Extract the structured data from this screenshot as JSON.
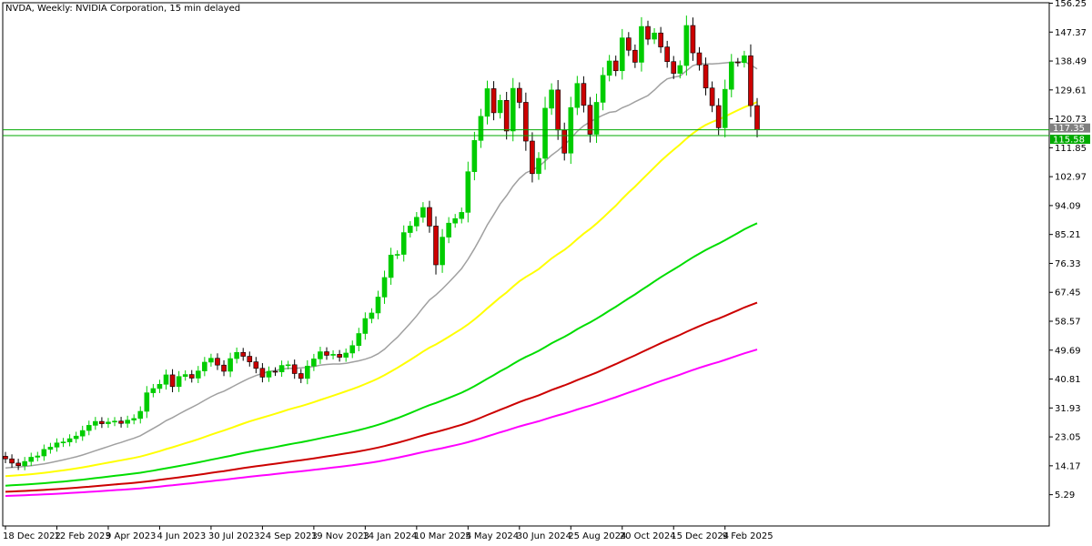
{
  "chart_data": {
    "type": "candlestick",
    "title": "NVDA, Weekly:  NVIDIA Corporation, 15 min delayed",
    "y_ticks": [
      "156.25",
      "147.37",
      "138.49",
      "129.61",
      "120.73",
      "111.85",
      "102.97",
      "94.09",
      "85.21",
      "76.33",
      "67.45",
      "58.57",
      "49.69",
      "40.81",
      "31.93",
      "23.05",
      "14.17",
      "5.29"
    ],
    "ylim": [
      0.0,
      156.25
    ],
    "x_ticks": [
      {
        "label": "18 Dec 2022",
        "index": 0
      },
      {
        "label": "12 Feb 2023",
        "index": 8
      },
      {
        "label": "9 Apr 2023",
        "index": 16
      },
      {
        "label": "4 Jun 2023",
        "index": 24
      },
      {
        "label": "30 Jul 2023",
        "index": 32
      },
      {
        "label": "24 Sep 2023",
        "index": 40
      },
      {
        "label": "19 Nov 2023",
        "index": 48
      },
      {
        "label": "14 Jan 2024",
        "index": 56
      },
      {
        "label": "10 Mar 2024",
        "index": 64
      },
      {
        "label": "5 May 2024",
        "index": 72
      },
      {
        "label": "30 Jun 2024",
        "index": 80
      },
      {
        "label": "25 Aug 2024",
        "index": 88
      },
      {
        "label": "20 Oct 2024",
        "index": 96
      },
      {
        "label": "15 Dec 2024",
        "index": 104
      },
      {
        "label": "9 Feb 2025",
        "index": 112
      }
    ],
    "price_labels": [
      {
        "text": "117.35",
        "value": 117.35
      },
      {
        "text": "115.58",
        "value": 115.58
      }
    ],
    "closes": [
      16.3,
      15.0,
      14.2,
      15.5,
      16.8,
      17.2,
      19.2,
      19.9,
      21.2,
      21.5,
      22.5,
      23.3,
      25.0,
      26.6,
      27.8,
      27.1,
      27.6,
      27.9,
      27.2,
      28.2,
      28.7,
      30.9,
      36.6,
      37.9,
      39.2,
      42.1,
      38.5,
      41.6,
      42.2,
      41.1,
      43.3,
      46.0,
      47.2,
      45.1,
      43.2,
      47.1,
      49.0,
      47.8,
      46.1,
      44.1,
      41.4,
      43.2,
      43.0,
      45.0,
      45.2,
      42.5,
      41.0,
      44.8,
      47.0,
      49.2,
      48.1,
      48.4,
      47.5,
      48.8,
      51.1,
      54.8,
      59.4,
      61.1,
      66.0,
      72.0,
      78.9,
      79.1,
      85.8,
      87.8,
      90.5,
      93.5,
      87.8,
      75.9,
      84.4,
      88.7,
      90.1,
      92.0,
      104.5,
      114.1,
      121.5,
      130.0,
      122.6,
      126.4,
      117.0,
      130.1,
      125.8,
      113.9,
      103.9,
      108.6,
      124.0,
      129.6,
      117.3,
      110.2,
      124.2,
      131.6,
      124.9,
      116.0,
      125.8,
      134.1,
      138.5,
      135.5,
      145.6,
      141.8,
      138.1,
      149.1,
      145.2,
      147.1,
      142.8,
      138.3,
      134.7,
      137.1,
      149.4,
      141.0,
      137.3,
      130.2,
      124.8,
      118.0,
      129.8,
      138.2,
      138.0,
      140.1,
      124.8,
      117.35
    ],
    "ma_series": [
      {
        "color": "#a0a0a0",
        "period": 20
      },
      {
        "color": "#ffff00",
        "period": 50
      },
      {
        "color": "#00dd00",
        "period": 100
      },
      {
        "color": "#cc0000",
        "period": 150
      },
      {
        "color": "#ff00ff",
        "period": 200
      }
    ],
    "up_color": "#00cc00",
    "down_color": "#cc0000",
    "hline_color": "#00aa00"
  }
}
